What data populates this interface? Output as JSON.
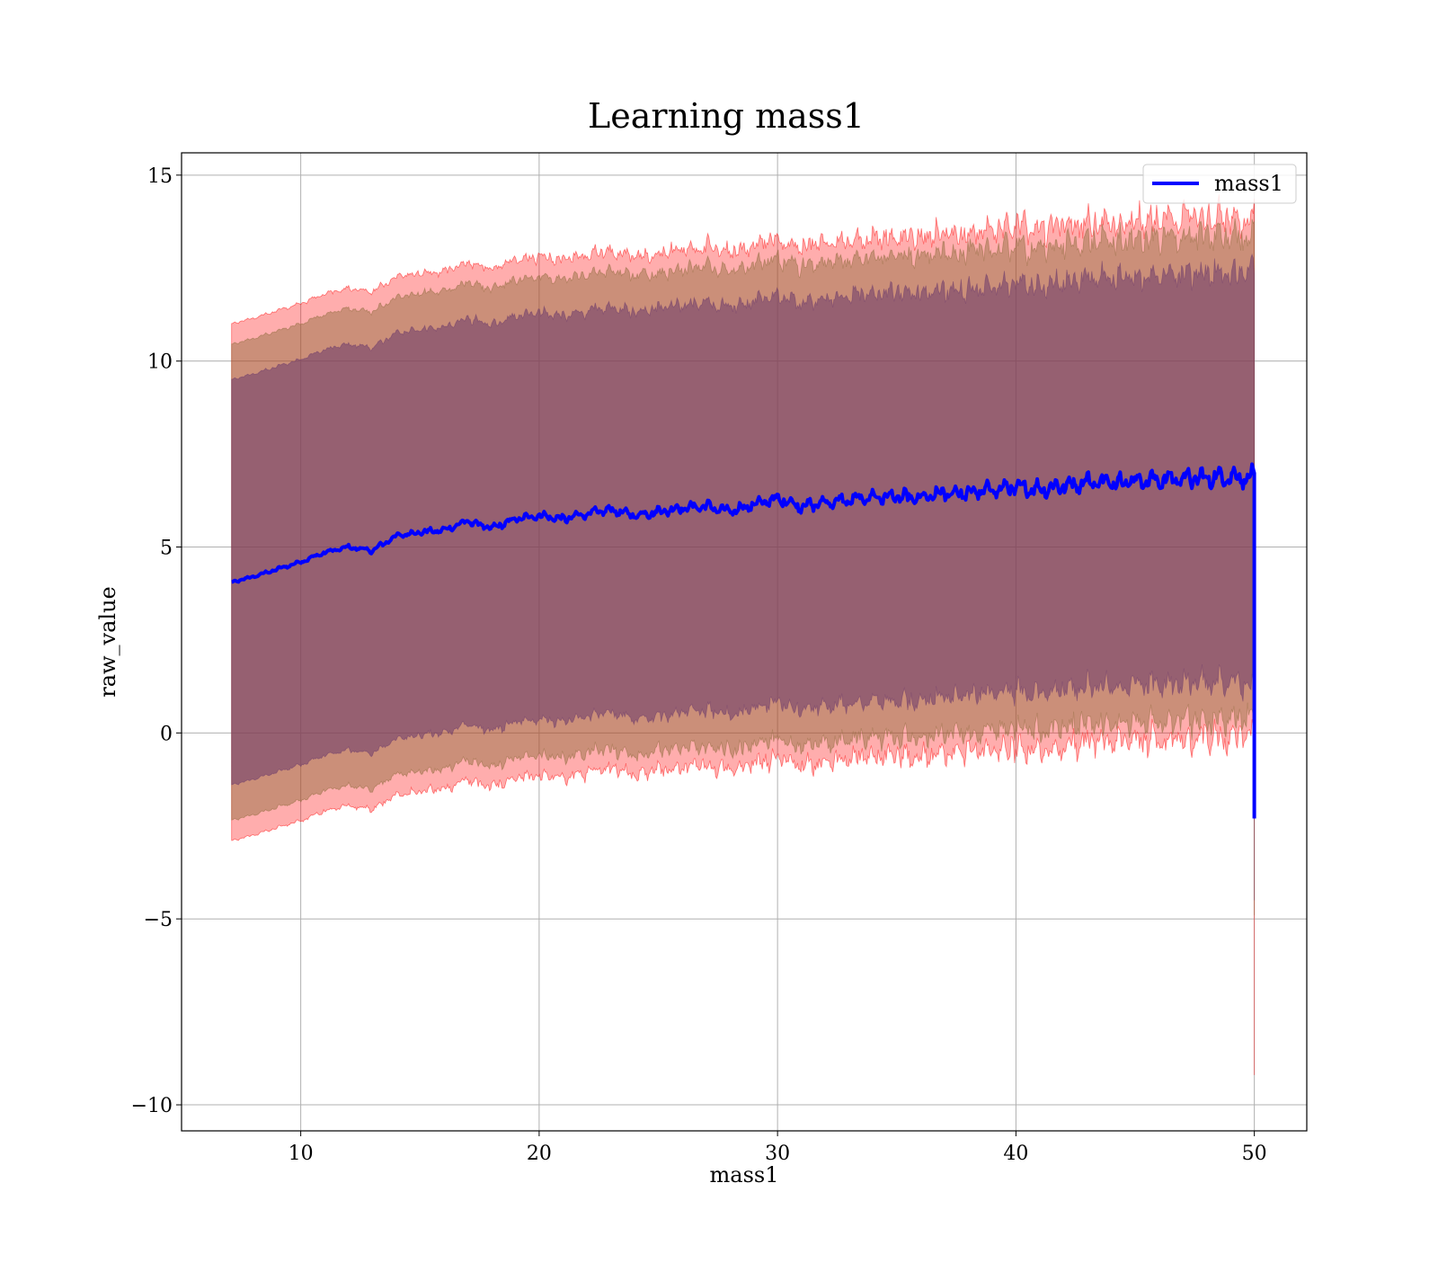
{
  "chart_data": {
    "type": "area",
    "title": "Learning mass1",
    "xlabel": "mass1",
    "ylabel": "raw_value",
    "xlim": [
      5,
      52.2
    ],
    "ylim": [
      -10.7,
      15.6
    ],
    "xticks": [
      10,
      20,
      30,
      40,
      50
    ],
    "xtick_labels": [
      "10",
      "20",
      "30",
      "40",
      "50"
    ],
    "yticks": [
      -10,
      -5,
      0,
      5,
      10,
      15
    ],
    "ytick_labels": [
      "−10",
      "−5",
      "0",
      "5",
      "10",
      "15"
    ],
    "grid": true,
    "legend": {
      "position": "top-right",
      "entries": [
        "mass1"
      ]
    },
    "x_range": [
      7.1,
      50
    ],
    "mean_anchors": {
      "x": [
        7.1,
        8,
        9,
        10,
        11,
        12,
        13,
        14,
        15,
        16,
        17,
        18,
        19,
        20,
        21,
        22,
        23,
        24,
        25,
        26,
        27,
        28,
        29,
        30,
        31,
        32,
        33,
        34,
        35,
        36,
        37,
        38,
        39,
        40,
        41,
        42,
        43,
        44,
        45,
        46,
        47,
        48,
        49,
        50
      ],
      "y": [
        4.05,
        4.2,
        4.4,
        4.6,
        4.85,
        5.0,
        4.9,
        5.3,
        5.4,
        5.45,
        5.7,
        5.5,
        5.75,
        5.85,
        5.75,
        5.9,
        6.0,
        5.85,
        5.95,
        6.05,
        6.1,
        5.95,
        6.15,
        6.3,
        6.1,
        6.2,
        6.25,
        6.35,
        6.35,
        6.3,
        6.45,
        6.45,
        6.55,
        6.6,
        6.55,
        6.65,
        6.75,
        6.75,
        6.8,
        6.8,
        6.85,
        6.85,
        6.9,
        6.85
      ]
    },
    "end_drop": {
      "x": 50,
      "y_mean": -2.3,
      "y_outer_min": -9.2
    },
    "series": [
      {
        "name": "mass1",
        "kind": "line",
        "color": "#0000ff",
        "values_from": "mean_anchors"
      }
    ],
    "bands": [
      {
        "label": "outer",
        "color": "#ff0000",
        "opacity": 0.32,
        "half_width_start": 6.95,
        "half_width_end": 7.0,
        "noise": 0.35
      },
      {
        "label": "middle",
        "color": "#8b6a3a",
        "opacity": 0.45,
        "half_width_start": 6.4,
        "half_width_end": 6.5,
        "noise": 0.3
      },
      {
        "label": "inner",
        "color": "#6b3a6b",
        "opacity": 0.55,
        "half_width_start": 5.45,
        "half_width_end": 5.5,
        "noise": 0.25
      }
    ],
    "colors": {
      "grid": "#b0b0b0",
      "axis": "#000000",
      "line": "#0000ff",
      "legend_border": "#cccccc"
    }
  }
}
